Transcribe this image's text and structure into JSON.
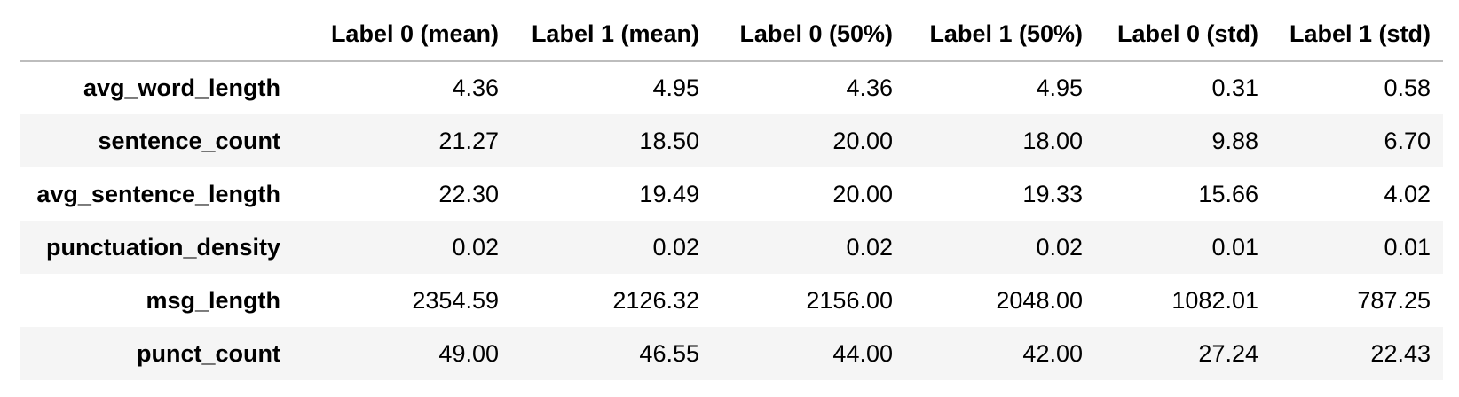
{
  "table": {
    "index_header": "",
    "columns": [
      "Label 0 (mean)",
      "Label 1 (mean)",
      "Label 0 (50%)",
      "Label 1 (50%)",
      "Label 0 (std)",
      "Label 1 (std)"
    ],
    "rows": [
      {
        "index": "avg_word_length",
        "values": [
          "4.36",
          "4.95",
          "4.36",
          "4.95",
          "0.31",
          "0.58"
        ]
      },
      {
        "index": "sentence_count",
        "values": [
          "21.27",
          "18.50",
          "20.00",
          "18.00",
          "9.88",
          "6.70"
        ]
      },
      {
        "index": "avg_sentence_length",
        "values": [
          "22.30",
          "19.49",
          "20.00",
          "19.33",
          "15.66",
          "4.02"
        ]
      },
      {
        "index": "punctuation_density",
        "values": [
          "0.02",
          "0.02",
          "0.02",
          "0.02",
          "0.01",
          "0.01"
        ]
      },
      {
        "index": "msg_length",
        "values": [
          "2354.59",
          "2126.32",
          "2156.00",
          "2048.00",
          "1082.01",
          "787.25"
        ]
      },
      {
        "index": "punct_count",
        "values": [
          "49.00",
          "46.55",
          "44.00",
          "42.00",
          "27.24",
          "22.43"
        ]
      }
    ]
  },
  "colors": {
    "header_rule": "#bdbdbd",
    "stripe": "#f5f5f5",
    "background": "#ffffff",
    "text": "#000000"
  }
}
